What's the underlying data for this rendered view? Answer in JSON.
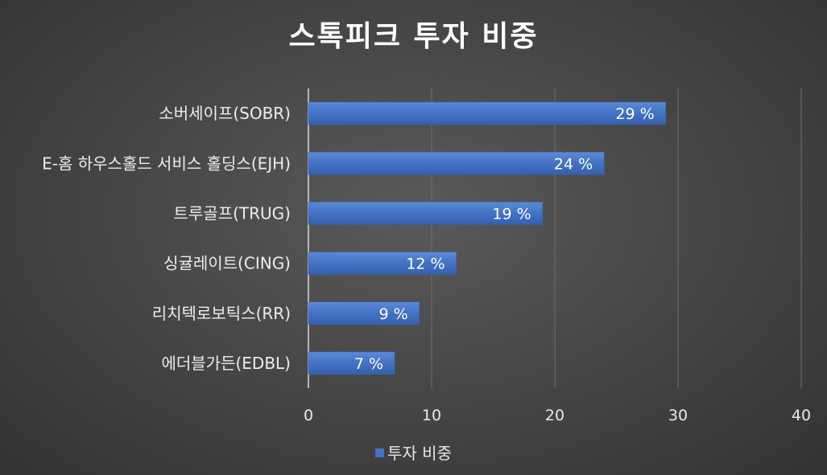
{
  "chart_data": {
    "type": "bar",
    "orientation": "horizontal",
    "title": "스톡피크 투자 비중",
    "categories": [
      "소버세이프(SOBR)",
      "E-홈 하우스홀드 서비스 홀딩스(EJH)",
      "트루골프(TRUG)",
      "싱귤레이트(CING)",
      "리치텍로보틱스(RR)",
      "에더블가든(EDBL)"
    ],
    "series": [
      {
        "name": "투자 비중",
        "values": [
          29,
          24,
          19,
          12,
          9,
          7
        ],
        "data_labels": [
          "29 %",
          "24 %",
          "19 %",
          "12 %",
          "9 %",
          "7 %"
        ],
        "color": "#4472c4"
      }
    ],
    "xlim": [
      0,
      40
    ],
    "xticks": [
      "0",
      "10",
      "20",
      "30",
      "40"
    ],
    "grid": true,
    "legend_position": "bottom"
  }
}
